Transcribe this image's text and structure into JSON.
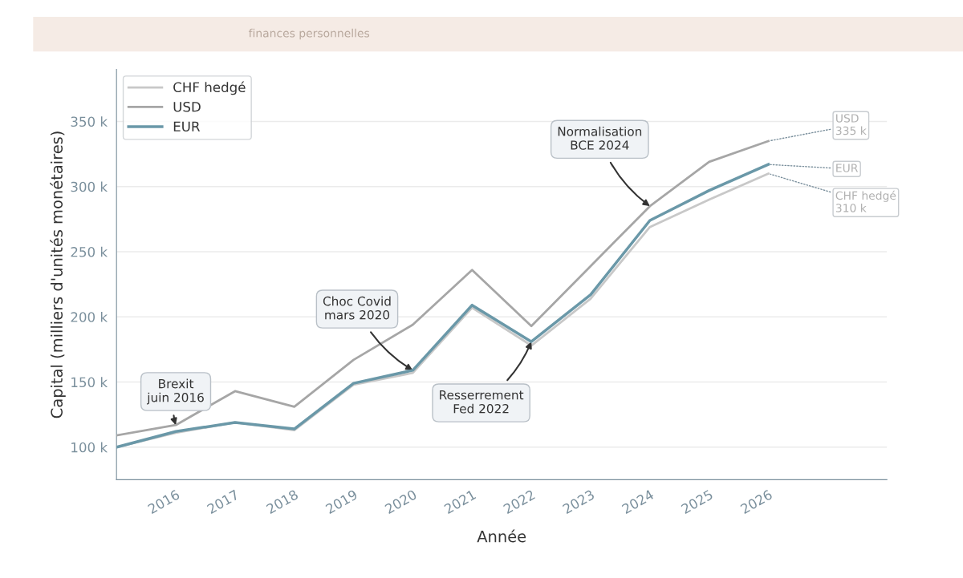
{
  "chart_data": {
    "type": "line",
    "subtitle": "finances personnelles",
    "xlabel": "Année",
    "ylabel": "Capital (milliers d'unités monétaires)",
    "x": [
      2015,
      2016,
      2017,
      2018,
      2019,
      2020,
      2021,
      2022,
      2023,
      2024,
      2025,
      2026
    ],
    "series": [
      {
        "name": "CHF hedgé",
        "color": "#c8c8c8",
        "values": [
          100,
          111,
          119,
          113,
          148,
          157,
          207,
          178,
          214,
          269,
          290,
          310
        ]
      },
      {
        "name": "USD",
        "color": "#a6a6a6",
        "values": [
          109,
          117,
          143,
          131,
          167,
          194,
          236,
          193,
          239,
          285,
          319,
          335
        ]
      },
      {
        "name": "EUR",
        "color": "#6a98a8",
        "values": [
          100,
          112,
          119,
          114,
          149,
          159,
          209,
          181,
          217,
          274,
          297,
          317
        ]
      }
    ],
    "xlim": [
      2015,
      2028
    ],
    "xticks": [
      2016,
      2017,
      2018,
      2019,
      2020,
      2021,
      2022,
      2023,
      2024,
      2025,
      2026
    ],
    "ylim": [
      75,
      390
    ],
    "yticks": [
      {
        "value": 100,
        "label": "100 k"
      },
      {
        "value": 150,
        "label": "150 k"
      },
      {
        "value": 200,
        "label": "200 k"
      },
      {
        "value": 250,
        "label": "250 k"
      },
      {
        "value": 300,
        "label": "300 k"
      },
      {
        "value": 350,
        "label": "350 k"
      }
    ],
    "annotations": [
      {
        "text": "Brexit\njuin 2016",
        "x": 2016,
        "y": 117
      },
      {
        "text": "Choc Covid\nmars 2020",
        "x": 2020,
        "y": 159
      },
      {
        "text": "Resserrement\nFed 2022",
        "x": 2022,
        "y": 181
      },
      {
        "text": "Normalisation\nBCE 2024",
        "x": 2024,
        "y": 285
      },
      {
        "text": "USD\n335 k",
        "x": 2026,
        "y": 335
      },
      {
        "text": "EUR",
        "x": 2026,
        "y": 317
      },
      {
        "text": "CHF hedgé\n310 k",
        "x": 2026,
        "y": 310
      }
    ],
    "grid": "y",
    "legend": "top left",
    "marker": "none",
    "line_style": "solid"
  }
}
